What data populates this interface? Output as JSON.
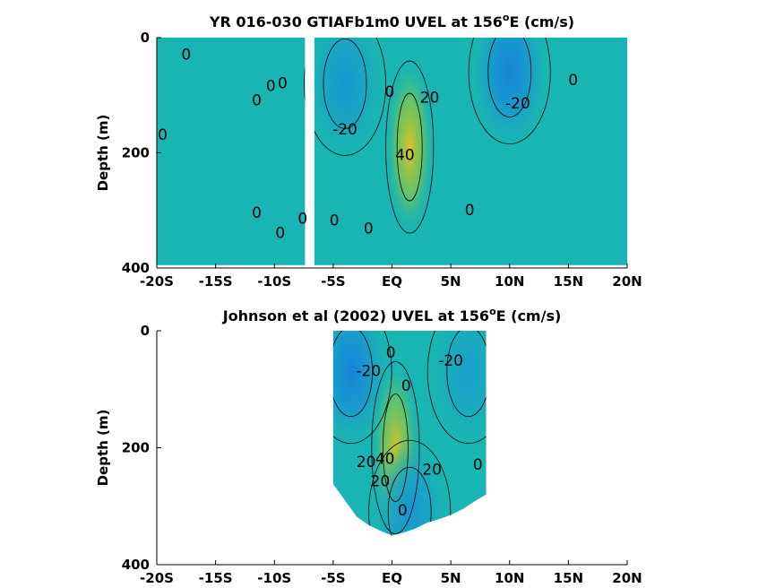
{
  "chart_data": [
    {
      "type": "heatmap",
      "title": "YR 016-030 GTIAFb1m0 UVEL at 156",
      "title_superscript": "o",
      "title_suffix": "E (cm/s)",
      "ylabel": "Depth (m)",
      "xlabel": "",
      "x_ticks": [
        "-20S",
        "-15S",
        "-10S",
        "-5S",
        "EQ",
        "5N",
        "10N",
        "15N",
        "20N"
      ],
      "y_ticks": [
        "0",
        "200",
        "400"
      ],
      "xlim": [
        -20,
        20
      ],
      "ylim": [
        0,
        400
      ],
      "y_reversed": true,
      "grid": false,
      "colors": {
        "low": "#1a7fd6",
        "mid": "#19b4b3",
        "high": "#c9c422"
      },
      "features": [
        {
          "kind": "jet",
          "lat": 1.5,
          "depth": 190,
          "speed": 45
        },
        {
          "kind": "westward",
          "lat": 10,
          "depth": 60,
          "speed": -25
        },
        {
          "kind": "westward",
          "lat": -4,
          "depth": 80,
          "speed": -15
        }
      ],
      "contour_labels": [
        {
          "text": "0",
          "lat": -17.5,
          "depth": 30
        },
        {
          "text": "0",
          "lat": -19.5,
          "depth": 170
        },
        {
          "text": "0",
          "lat": -11.5,
          "depth": 110
        },
        {
          "text": "0",
          "lat": -10.3,
          "depth": 85
        },
        {
          "text": "0",
          "lat": -9.3,
          "depth": 80
        },
        {
          "text": "0",
          "lat": -11.5,
          "depth": 305
        },
        {
          "text": "0",
          "lat": -9.5,
          "depth": 340
        },
        {
          "text": "0",
          "lat": -7.6,
          "depth": 315
        },
        {
          "text": "0",
          "lat": -4.9,
          "depth": 318
        },
        {
          "text": "0",
          "lat": -2.0,
          "depth": 332
        },
        {
          "text": "0",
          "lat": -0.2,
          "depth": 95
        },
        {
          "text": "-20",
          "lat": -4.0,
          "depth": 160
        },
        {
          "text": "20",
          "lat": 3.2,
          "depth": 105
        },
        {
          "text": "40",
          "lat": 1.1,
          "depth": 205
        },
        {
          "text": "0",
          "lat": 6.6,
          "depth": 300
        },
        {
          "text": "-20",
          "lat": 10.7,
          "depth": 115
        },
        {
          "text": "0",
          "lat": 15.4,
          "depth": 75
        }
      ]
    },
    {
      "type": "heatmap",
      "title": "Johnson et al (2002) UVEL at 156",
      "title_superscript": "o",
      "title_suffix": "E (cm/s)",
      "ylabel": "Depth (m)",
      "xlabel": "",
      "x_ticks": [
        "-20S",
        "-15S",
        "-10S",
        "-5S",
        "EQ",
        "5N",
        "10N",
        "15N",
        "20N"
      ],
      "y_ticks": [
        "0",
        "200",
        "400"
      ],
      "xlim": [
        -20,
        20
      ],
      "ylim": [
        0,
        400
      ],
      "y_reversed": true,
      "grid": false,
      "colors": {
        "low": "#1a7fd6",
        "mid": "#19b4b3",
        "high": "#c9c422"
      },
      "data_extent": {
        "lat_min": -5,
        "lat_max": 8
      },
      "coverage_depth": [
        {
          "lat": -5,
          "depth": 262
        },
        {
          "lat": -4,
          "depth": 290
        },
        {
          "lat": -3,
          "depth": 318
        },
        {
          "lat": -2,
          "depth": 332
        },
        {
          "lat": -1,
          "depth": 342
        },
        {
          "lat": 0,
          "depth": 350
        },
        {
          "lat": 1,
          "depth": 345
        },
        {
          "lat": 2,
          "depth": 338
        },
        {
          "lat": 3,
          "depth": 328
        },
        {
          "lat": 4,
          "depth": 322
        },
        {
          "lat": 5,
          "depth": 315
        },
        {
          "lat": 6,
          "depth": 305
        },
        {
          "lat": 7,
          "depth": 292
        },
        {
          "lat": 8,
          "depth": 280
        }
      ],
      "features": [
        {
          "kind": "jet",
          "lat": 0.3,
          "depth": 200,
          "speed": 42
        },
        {
          "kind": "westward",
          "lat": -3.5,
          "depth": 70,
          "speed": -25
        },
        {
          "kind": "westward",
          "lat": 1.5,
          "depth": 310,
          "speed": -15
        },
        {
          "kind": "westward",
          "lat": 6.5,
          "depth": 70,
          "speed": -10
        }
      ],
      "contour_labels": [
        {
          "text": "0",
          "lat": -0.1,
          "depth": 38
        },
        {
          "text": "-20",
          "lat": -2.0,
          "depth": 70
        },
        {
          "text": "0",
          "lat": 1.2,
          "depth": 95
        },
        {
          "text": "-20",
          "lat": 5.0,
          "depth": 52
        },
        {
          "text": "20",
          "lat": -2.2,
          "depth": 225
        },
        {
          "text": "40",
          "lat": -0.6,
          "depth": 220
        },
        {
          "text": "20",
          "lat": -1.0,
          "depth": 258
        },
        {
          "text": "20",
          "lat": 3.4,
          "depth": 238
        },
        {
          "text": "0",
          "lat": 7.3,
          "depth": 230
        },
        {
          "text": "0",
          "lat": 0.9,
          "depth": 308
        }
      ]
    }
  ]
}
